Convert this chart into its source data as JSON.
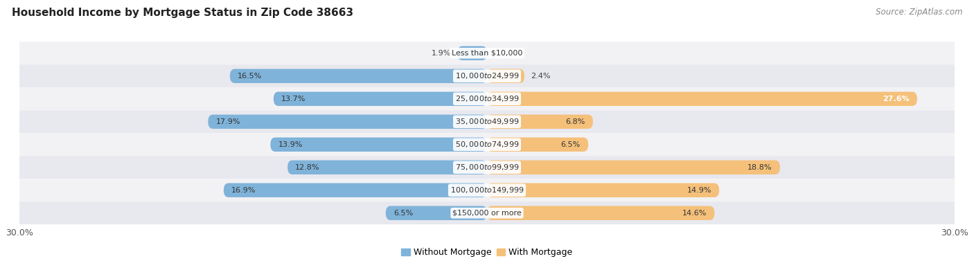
{
  "title": "Household Income by Mortgage Status in Zip Code 38663",
  "source": "Source: ZipAtlas.com",
  "categories": [
    "Less than $10,000",
    "$10,000 to $24,999",
    "$25,000 to $34,999",
    "$35,000 to $49,999",
    "$50,000 to $74,999",
    "$75,000 to $99,999",
    "$100,000 to $149,999",
    "$150,000 or more"
  ],
  "without_mortgage": [
    1.9,
    16.5,
    13.7,
    17.9,
    13.9,
    12.8,
    16.9,
    6.5
  ],
  "with_mortgage": [
    0.0,
    2.4,
    27.6,
    6.8,
    6.5,
    18.8,
    14.9,
    14.6
  ],
  "color_without": "#7fb3d9",
  "color_with": "#f5c07a",
  "color_without_light": "#b8d4ea",
  "color_with_light": "#f9ddb0",
  "bg_colors": [
    "#f2f2f5",
    "#e8e8ef"
  ],
  "xlim": 30.0,
  "legend_labels": [
    "Without Mortgage",
    "With Mortgage"
  ],
  "bar_height": 0.62,
  "label_fontsize": 8.0,
  "title_fontsize": 11,
  "source_fontsize": 8.5
}
